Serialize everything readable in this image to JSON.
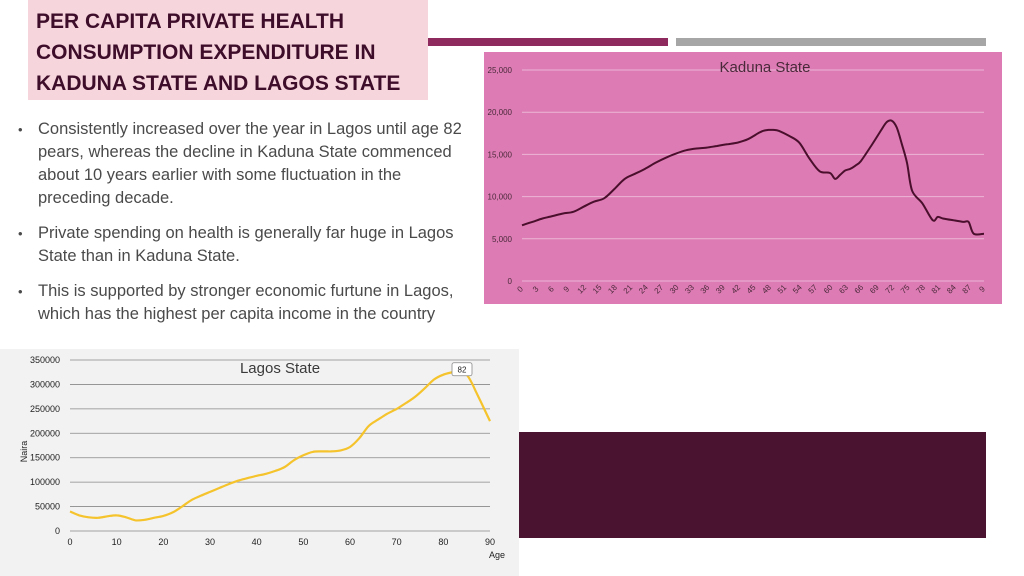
{
  "title": "PER CAPITA PRIVATE HEALTH CONSUMPTION EXPENDITURE IN KADUNA STATE AND LAGOS STATE",
  "bullets": [
    "Consistently increased over the year in Lagos until age 82 pears, whereas the decline in Kaduna State commenced about 10 years earlier with some fluctuation in the preceding decade.",
    "Private spending on health is generally far huge in Lagos State than in Kaduna State.",
    "This is supported by stronger economic furtune in Lagos, which has the highest per capita income in the country"
  ],
  "colors": {
    "title_bg": "#f7d5dc",
    "title_text": "#3d0d2a",
    "accent_purple": "#8e2a5e",
    "accent_grey": "#a6a6a6",
    "dark_block": "#4a1330",
    "kaduna_bg": "#dd7bb4",
    "kaduna_line": "#4a0f2c",
    "lagos_bg": "#f2f2f2",
    "lagos_line": "#f5c32c"
  },
  "chart_data": [
    {
      "type": "line",
      "title": "Kaduna State",
      "xlabel": "",
      "ylabel": "",
      "x_tick_labels": [
        "0",
        "3",
        "6",
        "9",
        "12",
        "15",
        "18",
        "21",
        "24",
        "27",
        "30",
        "33",
        "36",
        "39",
        "42",
        "45",
        "48",
        "51",
        "54",
        "57",
        "60",
        "63",
        "66",
        "69",
        "72",
        "75",
        "78",
        "81",
        "84",
        "87",
        "9"
      ],
      "y_ticks": [
        "0",
        "5,000",
        "10,000",
        "15,000",
        "20,000",
        "25,000"
      ],
      "ylim": [
        0,
        25000
      ],
      "xlim": [
        0,
        90
      ],
      "grid": true,
      "x": [
        0,
        2,
        4,
        6,
        8,
        10,
        12,
        14,
        16,
        18,
        20,
        22,
        24,
        26,
        28,
        30,
        32,
        34,
        36,
        38,
        40,
        42,
        44,
        46,
        47,
        48,
        49,
        50,
        52,
        54,
        56,
        58,
        60,
        61,
        62,
        63,
        64,
        65,
        66,
        68,
        70,
        71,
        72,
        73,
        74,
        75,
        76,
        78,
        80,
        81,
        82,
        84,
        86,
        87,
        88,
        90
      ],
      "y": [
        6600,
        7000,
        7400,
        7700,
        8000,
        8200,
        8800,
        9400,
        9800,
        10900,
        12100,
        12700,
        13300,
        14000,
        14600,
        15100,
        15500,
        15700,
        15800,
        16000,
        16200,
        16400,
        16800,
        17500,
        17800,
        17900,
        17900,
        17800,
        17200,
        16400,
        14500,
        13000,
        12800,
        12100,
        12600,
        13100,
        13300,
        13700,
        14200,
        16000,
        17900,
        18800,
        19000,
        18200,
        16200,
        14000,
        10700,
        9200,
        7200,
        7600,
        7400,
        7200,
        7000,
        7000,
        5600,
        5600
      ],
      "series_color": "#4a0f2c"
    },
    {
      "type": "line",
      "title": "Lagos State",
      "xlabel": "Age",
      "ylabel": "Naira",
      "x_ticks": [
        0,
        10,
        20,
        30,
        40,
        50,
        60,
        70,
        80,
        90
      ],
      "y_ticks": [
        0,
        50000,
        100000,
        150000,
        200000,
        250000,
        300000,
        350000
      ],
      "ylim": [
        0,
        350000
      ],
      "xlim": [
        0,
        90
      ],
      "grid": true,
      "annotation": {
        "label": "82",
        "x": 84,
        "y": 328000
      },
      "x": [
        0,
        2,
        4,
        6,
        8,
        10,
        12,
        14,
        16,
        18,
        20,
        22,
        24,
        26,
        28,
        30,
        32,
        34,
        36,
        38,
        40,
        42,
        44,
        46,
        48,
        50,
        52,
        54,
        56,
        58,
        60,
        62,
        64,
        66,
        68,
        70,
        72,
        74,
        76,
        78,
        80,
        82,
        84,
        85,
        86,
        87,
        88,
        90
      ],
      "y": [
        40000,
        32000,
        28000,
        27000,
        30000,
        32000,
        28000,
        22000,
        23000,
        27000,
        31000,
        38000,
        50000,
        63000,
        72000,
        80000,
        88000,
        96000,
        103000,
        108000,
        113000,
        117000,
        123000,
        131000,
        145000,
        155000,
        162000,
        163000,
        163000,
        165000,
        172000,
        190000,
        215000,
        228000,
        240000,
        250000,
        262000,
        275000,
        292000,
        310000,
        320000,
        325000,
        328000,
        320000,
        305000,
        285000,
        265000,
        225000
      ],
      "series_color": "#f5c32c"
    }
  ]
}
